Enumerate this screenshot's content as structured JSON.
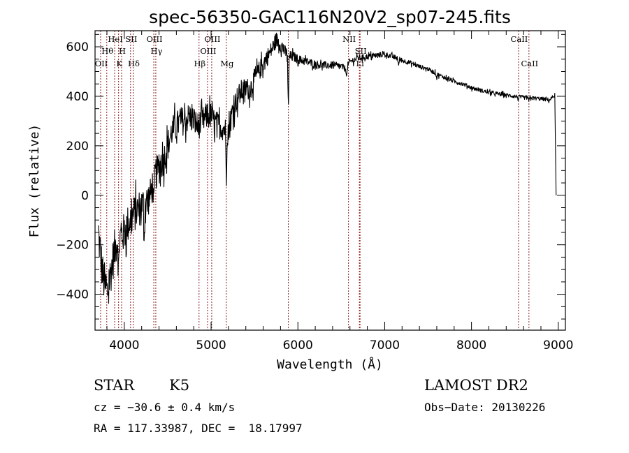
{
  "chart_data": {
    "type": "line",
    "title": "spec-56350-GAC116N20V2_sp07-245.fits",
    "xlabel": "Wavelength (Å)",
    "ylabel": "Flux (relative)",
    "xlim": [
      3663,
      9082
    ],
    "ylim": [
      -545,
      665
    ],
    "grid": false,
    "x_ticks": [
      4000,
      5000,
      6000,
      7000,
      8000,
      9000
    ],
    "x_tick_labels": [
      "4000",
      "5000",
      "6000",
      "7000",
      "8000",
      "9000"
    ],
    "x_minor_step": 200,
    "y_ticks": [
      -400,
      -200,
      0,
      200,
      400,
      600
    ],
    "y_tick_labels": [
      "−400",
      "−200",
      "0",
      "200",
      "400",
      "600"
    ],
    "y_minor_step": 50,
    "series": [
      {
        "name": "flux",
        "color": "#000000",
        "anchors": [
          [
            3700,
            -150
          ],
          [
            3750,
            -320
          ],
          [
            3800,
            -400
          ],
          [
            3850,
            -300
          ],
          [
            3900,
            -200
          ],
          [
            3950,
            -170
          ],
          [
            4000,
            -150
          ],
          [
            4050,
            -110
          ],
          [
            4100,
            -80
          ],
          [
            4150,
            -60
          ],
          [
            4200,
            -40
          ],
          [
            4250,
            -30
          ],
          [
            4300,
            0
          ],
          [
            4350,
            80
          ],
          [
            4400,
            110
          ],
          [
            4450,
            140
          ],
          [
            4500,
            200
          ],
          [
            4550,
            260
          ],
          [
            4600,
            280
          ],
          [
            4650,
            300
          ],
          [
            4700,
            300
          ],
          [
            4750,
            320
          ],
          [
            4800,
            300
          ],
          [
            4850,
            280
          ],
          [
            4900,
            300
          ],
          [
            4950,
            320
          ],
          [
            5000,
            320
          ],
          [
            5050,
            290
          ],
          [
            5100,
            280
          ],
          [
            5150,
            270
          ],
          [
            5200,
            250
          ],
          [
            5250,
            350
          ],
          [
            5300,
            390
          ],
          [
            5350,
            420
          ],
          [
            5400,
            430
          ],
          [
            5450,
            430
          ],
          [
            5500,
            470
          ],
          [
            5550,
            500
          ],
          [
            5600,
            530
          ],
          [
            5650,
            560
          ],
          [
            5700,
            590
          ],
          [
            5750,
            630
          ],
          [
            5800,
            610
          ],
          [
            5850,
            580
          ],
          [
            5900,
            560
          ],
          [
            5950,
            560
          ],
          [
            6000,
            550
          ],
          [
            6100,
            540
          ],
          [
            6200,
            530
          ],
          [
            6300,
            525
          ],
          [
            6400,
            525
          ],
          [
            6500,
            520
          ],
          [
            6550,
            510
          ],
          [
            6600,
            540
          ],
          [
            6700,
            555
          ],
          [
            6800,
            560
          ],
          [
            6900,
            565
          ],
          [
            7000,
            570
          ],
          [
            7100,
            560
          ],
          [
            7200,
            545
          ],
          [
            7300,
            535
          ],
          [
            7400,
            520
          ],
          [
            7500,
            510
          ],
          [
            7600,
            490
          ],
          [
            7700,
            475
          ],
          [
            7800,
            460
          ],
          [
            7900,
            450
          ],
          [
            8000,
            435
          ],
          [
            8100,
            425
          ],
          [
            8200,
            415
          ],
          [
            8300,
            410
          ],
          [
            8400,
            405
          ],
          [
            8500,
            400
          ],
          [
            8600,
            395
          ],
          [
            8700,
            393
          ],
          [
            8800,
            390
          ],
          [
            8900,
            385
          ],
          [
            8960,
            405
          ],
          [
            8975,
            0
          ]
        ],
        "noise": [
          [
            3700,
            90
          ],
          [
            4300,
            70
          ],
          [
            4600,
            60
          ],
          [
            5300,
            50
          ],
          [
            5800,
            30
          ],
          [
            6000,
            18
          ],
          [
            6800,
            12
          ],
          [
            7500,
            8
          ],
          [
            8900,
            8
          ]
        ],
        "absorption_dips": [
          [
            3934,
            -150
          ],
          [
            4230,
            -140
          ],
          [
            4340,
            -120
          ],
          [
            5175,
            -200
          ],
          [
            5890,
            -250
          ],
          [
            6563,
            -40
          ],
          [
            7160,
            -30
          ],
          [
            7600,
            -20
          ],
          [
            8540,
            -15
          ],
          [
            8660,
            -15
          ]
        ]
      }
    ],
    "spectral_lines": [
      {
        "label": "OII",
        "wavelength": 3727,
        "row": 3
      },
      {
        "label": "Hθ",
        "wavelength": 3798,
        "row": 2
      },
      {
        "label": "HeI",
        "wavelength": 3889,
        "row": 1
      },
      {
        "label": "K",
        "wavelength": 3934,
        "row": 3
      },
      {
        "label": "H",
        "wavelength": 3969,
        "row": 2
      },
      {
        "label": "SII",
        "wavelength": 4072,
        "row": 1
      },
      {
        "label": "Hδ",
        "wavelength": 4102,
        "row": 3
      },
      {
        "label": "OIII",
        "wavelength": 4340,
        "row": 1,
        "text_offset": 0
      },
      {
        "label": "Hγ",
        "wavelength": 4363,
        "row": 2
      },
      {
        "label": "Hβ",
        "wavelength": 4861,
        "row": 3
      },
      {
        "label": "OIII",
        "wavelength": 4959,
        "row": 2
      },
      {
        "label": "OIII",
        "wavelength": 5007,
        "row": 1
      },
      {
        "label": "Mg",
        "wavelength": 5175,
        "row": 3
      },
      {
        "label": "",
        "wavelength": 5890,
        "row": 0
      },
      {
        "label": "NII",
        "wavelength": 6583,
        "row": 1
      },
      {
        "label": "SII",
        "wavelength": 6716,
        "row": 2
      },
      {
        "label": "Li",
        "wavelength": 6708,
        "row": 3
      },
      {
        "label": "CaII",
        "wavelength": 8542,
        "row": 1
      },
      {
        "label": "CaII",
        "wavelength": 8662,
        "row": 3
      }
    ],
    "line_marker_color": "#8b2020"
  },
  "info": {
    "object_class": "STAR",
    "subclass": "K5",
    "survey": "LAMOST DR2",
    "redshift": "cz = −30.6 ± 0.4 km/s",
    "obs_date": "Obs−Date: 20130226",
    "coords": "RA = 117.33987, DEC =  18.17997"
  }
}
